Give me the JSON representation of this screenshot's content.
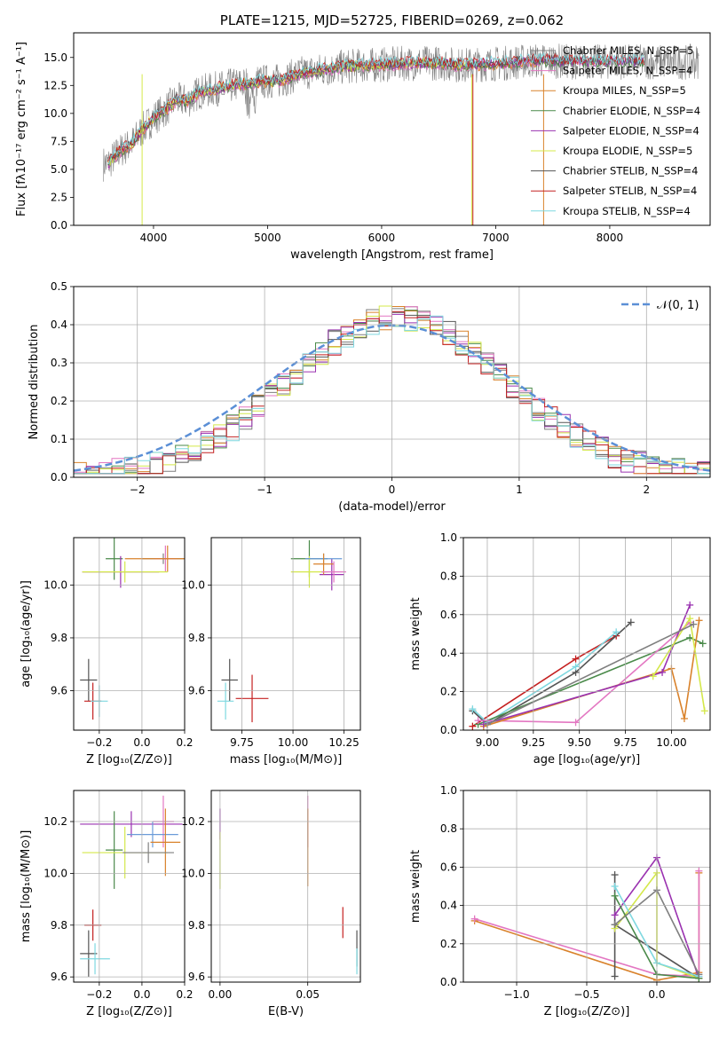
{
  "colors": {
    "chabrier_miles": "#7f7f7f",
    "salpeter_miles": "#e377c2",
    "kroupa_miles": "#d9822b",
    "chabrier_elodie": "#4a8a4a",
    "salpeter_elodie": "#9a32b0",
    "kroupa_elodie": "#d4e84a",
    "chabrier_stelib": "#555555",
    "salpeter_stelib": "#c42020",
    "kroupa_stelib": "#7fd8e0",
    "model_blue": "#6a9bd8",
    "normal": "#5b8fd6",
    "grid": "#b0b0b0"
  },
  "chart_data": [
    {
      "id": "spectrum",
      "type": "line",
      "title": "PLATE=1215, MJD=52725, FIBERID=0269, z=0.062",
      "xlabel": "wavelength [Angstrom, rest frame]",
      "ylabel": "Flux [fλ10⁻¹⁷ erg cm⁻² s⁻¹ A⁻¹]",
      "xlim": [
        3300,
        8880
      ],
      "ylim": [
        0,
        17.2
      ],
      "xticks": [
        "4000",
        "5000",
        "6000",
        "7000",
        "8000"
      ],
      "yticks": [
        "0.0",
        "2.5",
        "5.0",
        "7.5",
        "10.0",
        "12.5",
        "15.0"
      ],
      "legend_position": "right",
      "legend": [
        "Chabrier MILES, N_SSP=5",
        "Salpeter MILES, N_SSP=4",
        "Kroupa MILES, N_SSP=5",
        "Chabrier ELODIE, N_SSP=4",
        "Salpeter ELODIE, N_SSP=4",
        "Kroupa ELODIE, N_SSP=5",
        "Chabrier STELIB, N_SSP=4",
        "Salpeter STELIB, N_SSP=4",
        "Kroupa STELIB, N_SSP=4"
      ],
      "continuum": {
        "x": [
          3600,
          3700,
          3800,
          3900,
          4000,
          4100,
          4200,
          4300,
          4400,
          4500,
          4700,
          4900,
          5100,
          5300,
          5500,
          5700,
          5900,
          6100,
          6300,
          6500,
          6700,
          6900,
          7100,
          7300,
          7500,
          7700
        ],
        "y": [
          5.5,
          6.6,
          7.2,
          8.5,
          9.6,
          10.3,
          11.2,
          11.1,
          11.9,
          12.1,
          12.5,
          12.8,
          12.9,
          13.6,
          13.9,
          14.2,
          14.3,
          14.4,
          14.5,
          14.5,
          14.3,
          14.4,
          14.5,
          14.7,
          14.7,
          14.6
        ]
      }
    },
    {
      "id": "residuals",
      "type": "histogram",
      "xlabel": "(data-model)/error",
      "ylabel": "Normed distribution",
      "xlim": [
        -2.5,
        2.5
      ],
      "ylim": [
        0,
        0.5
      ],
      "xticks": [
        "−2",
        "−1",
        "0",
        "1",
        "2"
      ],
      "yticks": [
        "0.0",
        "0.1",
        "0.2",
        "0.3",
        "0.4",
        "0.5"
      ],
      "legend": [
        "𝒩(0, 1)"
      ],
      "legend_position": "top-right",
      "bin_width": 0.1,
      "bins_from": -2.5,
      "bins_to": 2.5
    },
    {
      "id": "age_vs_Z",
      "type": "scatter",
      "xlabel": "Z [log₁₀(Z/Z⊙)]",
      "ylabel": "age  [log₁₀(age/yr)]",
      "xlim": [
        -0.32,
        0.2
      ],
      "ylim": [
        9.45,
        10.18
      ],
      "xticks": [
        "−0.2",
        "0.0",
        "0.2"
      ],
      "yticks": [
        "9.6",
        "9.8",
        "10.0"
      ],
      "points": [
        {
          "model": "chabrier_miles",
          "x": 0.1,
          "y": 10.1,
          "xerr": 0.1,
          "yerr": 0.02
        },
        {
          "model": "salpeter_miles",
          "x": 0.11,
          "y": 10.1,
          "xerr": 0.05,
          "yerr": 0.05
        },
        {
          "model": "kroupa_miles",
          "x": 0.12,
          "y": 10.1,
          "xerr": 0.2,
          "yerr": 0.05
        },
        {
          "model": "chabrier_elodie",
          "x": -0.13,
          "y": 10.1,
          "xerr": 0.04,
          "yerr": 0.08
        },
        {
          "model": "salpeter_elodie",
          "x": -0.1,
          "y": 10.05,
          "xerr": 0.18,
          "yerr": 0.06
        },
        {
          "model": "kroupa_elodie",
          "x": -0.08,
          "y": 10.05,
          "xerr": 0.2,
          "yerr": 0.04
        },
        {
          "model": "chabrier_stelib",
          "x": -0.25,
          "y": 9.64,
          "xerr": 0.04,
          "yerr": 0.08
        },
        {
          "model": "salpeter_stelib",
          "x": -0.23,
          "y": 9.56,
          "xerr": 0.04,
          "yerr": 0.07
        },
        {
          "model": "kroupa_stelib",
          "x": -0.2,
          "y": 9.56,
          "xerr": 0.04,
          "yerr": 0.06
        }
      ]
    },
    {
      "id": "age_vs_mass",
      "type": "scatter",
      "xlabel": "mass [log₁₀(M/M⊙)]",
      "ylabel": "",
      "xlim": [
        9.6,
        10.33
      ],
      "ylim": [
        9.45,
        10.18
      ],
      "xticks": [
        "9.75",
        "10.00",
        "10.25"
      ],
      "yticks": [
        "9.6",
        "9.8",
        "10.0"
      ],
      "points": [
        {
          "model": "chabrier_elodie",
          "x": 10.08,
          "y": 10.1,
          "xerr": 0.09,
          "yerr": 0.07
        },
        {
          "model": "salpeter_elodie",
          "x": 10.19,
          "y": 10.04,
          "xerr": 0.06,
          "yerr": 0.06
        },
        {
          "model": "kroupa_elodie",
          "x": 10.08,
          "y": 10.05,
          "xerr": 0.09,
          "yerr": 0.06
        },
        {
          "model": "model_blue",
          "x": 10.15,
          "y": 10.1,
          "xerr": 0.09,
          "yerr": 0.02
        },
        {
          "model": "kroupa_miles",
          "x": 10.15,
          "y": 10.08,
          "xerr": 0.05,
          "yerr": 0.04
        },
        {
          "model": "salpeter_miles",
          "x": 10.2,
          "y": 10.05,
          "xerr": 0.06,
          "yerr": 0.04
        },
        {
          "model": "chabrier_stelib",
          "x": 9.69,
          "y": 9.64,
          "xerr": 0.04,
          "yerr": 0.08
        },
        {
          "model": "salpeter_stelib",
          "x": 9.8,
          "y": 9.57,
          "xerr": 0.08,
          "yerr": 0.09
        },
        {
          "model": "kroupa_stelib",
          "x": 9.67,
          "y": 9.56,
          "xerr": 0.04,
          "yerr": 0.07
        }
      ]
    },
    {
      "id": "weight_vs_age",
      "type": "line",
      "xlabel": "age  [log₁₀(age/yr)]",
      "ylabel": "mass weight",
      "xlim": [
        8.87,
        10.21
      ],
      "ylim": [
        0,
        1
      ],
      "xticks": [
        "9.00",
        "9.25",
        "9.50",
        "9.75",
        "10.00"
      ],
      "yticks": [
        "0.0",
        "0.2",
        "0.4",
        "0.6",
        "0.8",
        "1.0"
      ],
      "series": [
        {
          "model": "salpeter_stelib",
          "x": [
            8.92,
            9.48,
            9.7
          ],
          "y": [
            0.02,
            0.37,
            0.49
          ]
        },
        {
          "model": "chabrier_stelib",
          "x": [
            8.92,
            9.0,
            9.48,
            9.78
          ],
          "y": [
            0.1,
            0.03,
            0.3,
            0.56
          ]
        },
        {
          "model": "kroupa_stelib",
          "x": [
            8.92,
            9.0,
            9.48,
            9.7
          ],
          "y": [
            0.11,
            0.04,
            0.33,
            0.51
          ]
        },
        {
          "model": "chabrier_elodie",
          "x": [
            8.95,
            10.1,
            10.17
          ],
          "y": [
            0.03,
            0.48,
            0.45
          ]
        },
        {
          "model": "salpeter_miles",
          "x": [
            8.95,
            9.48,
            10.1
          ],
          "y": [
            0.05,
            0.04,
            0.56
          ]
        },
        {
          "model": "kroupa_miles",
          "x": [
            8.98,
            10.0,
            10.07,
            10.15
          ],
          "y": [
            0.02,
            0.32,
            0.06,
            0.57
          ]
        },
        {
          "model": "salpeter_elodie",
          "x": [
            8.98,
            9.95,
            10.1
          ],
          "y": [
            0.03,
            0.3,
            0.65
          ]
        },
        {
          "model": "kroupa_elodie",
          "x": [
            9.9,
            10.1,
            10.18
          ],
          "y": [
            0.28,
            0.58,
            0.1
          ]
        },
        {
          "model": "chabrier_miles",
          "x": [
            9.0,
            10.12
          ],
          "y": [
            0.03,
            0.55
          ]
        }
      ]
    },
    {
      "id": "mass_vs_Z",
      "type": "scatter",
      "xlabel": "Z [log₁₀(Z/Z⊙)]",
      "ylabel": "mass [log₁₀(M/M⊙)]",
      "xlim": [
        -0.32,
        0.2
      ],
      "ylim": [
        9.58,
        10.32
      ],
      "xticks": [
        "−0.2",
        "0.0",
        "0.2"
      ],
      "yticks": [
        "9.6",
        "9.8",
        "10.0",
        "10.2"
      ],
      "points": [
        {
          "model": "salpeter_elodie",
          "x": -0.05,
          "y": 10.19,
          "xerr": 0.24,
          "yerr": 0.05
        },
        {
          "model": "salpeter_miles",
          "x": 0.1,
          "y": 10.2,
          "xerr": 0.05,
          "yerr": 0.1
        },
        {
          "model": "model_blue",
          "x": 0.05,
          "y": 10.15,
          "xerr": 0.12,
          "yerr": 0.05
        },
        {
          "model": "kroupa_miles",
          "x": 0.11,
          "y": 10.12,
          "xerr": 0.07,
          "yerr": 0.13
        },
        {
          "model": "chabrier_elodie",
          "x": -0.13,
          "y": 10.09,
          "xerr": 0.04,
          "yerr": 0.15
        },
        {
          "model": "kroupa_elodie",
          "x": -0.08,
          "y": 10.08,
          "xerr": 0.2,
          "yerr": 0.1
        },
        {
          "model": "chabrier_miles",
          "x": 0.03,
          "y": 10.08,
          "xerr": 0.12,
          "yerr": 0.04
        },
        {
          "model": "salpeter_stelib",
          "x": -0.23,
          "y": 9.8,
          "xerr": 0.04,
          "yerr": 0.06
        },
        {
          "model": "chabrier_stelib",
          "x": -0.25,
          "y": 9.69,
          "xerr": 0.04,
          "yerr": 0.09
        },
        {
          "model": "kroupa_stelib",
          "x": -0.22,
          "y": 9.67,
          "xerr": 0.07,
          "yerr": 0.06
        }
      ]
    },
    {
      "id": "mass_vs_ebv",
      "type": "scatter",
      "xlabel": "E(B-V)",
      "ylabel": "",
      "xlim": [
        -0.005,
        0.08
      ],
      "ylim": [
        9.58,
        10.32
      ],
      "xticks": [
        "0.00",
        "0.05"
      ],
      "yticks": [
        "9.6",
        "9.8",
        "10.0",
        "10.2"
      ],
      "points": [
        {
          "model": "salpeter_elodie",
          "x": 0.0,
          "y": 10.19,
          "xerr": 0.0,
          "yerr": 0.06
        },
        {
          "model": "kroupa_elodie",
          "x": 0.0,
          "y": 10.05,
          "xerr": 0.0,
          "yerr": 0.11
        },
        {
          "model": "salpeter_miles",
          "x": 0.05,
          "y": 10.2,
          "xerr": 0.0,
          "yerr": 0.1
        },
        {
          "model": "kroupa_miles",
          "x": 0.05,
          "y": 10.1,
          "xerr": 0.0,
          "yerr": 0.15
        },
        {
          "model": "salpeter_stelib",
          "x": 0.07,
          "y": 9.81,
          "xerr": 0.0,
          "yerr": 0.06
        },
        {
          "model": "chabrier_stelib",
          "x": 0.078,
          "y": 9.71,
          "xerr": 0.0,
          "yerr": 0.07
        },
        {
          "model": "kroupa_stelib",
          "x": 0.078,
          "y": 9.66,
          "xerr": 0.0,
          "yerr": 0.05
        }
      ]
    },
    {
      "id": "weight_vs_Z",
      "type": "line",
      "xlabel": "Z [log₁₀(Z/Z⊙)]",
      "ylabel": "mass weight",
      "xlim": [
        -1.38,
        0.38
      ],
      "ylim": [
        0,
        1
      ],
      "xticks": [
        "−1.0",
        "−0.5",
        "0.0"
      ],
      "yticks": [
        "0.0",
        "0.2",
        "0.4",
        "0.6",
        "0.8",
        "1.0"
      ],
      "series": [
        {
          "model": "kroupa_miles",
          "x": [
            -1.3,
            0.0,
            0.3,
            0.3
          ],
          "y": [
            0.32,
            0.01,
            0.05,
            0.57
          ]
        },
        {
          "model": "salpeter_miles",
          "x": [
            -1.3,
            0.0,
            0.3,
            0.3
          ],
          "y": [
            0.33,
            0.04,
            0.03,
            0.58
          ]
        },
        {
          "model": "chabrier_stelib",
          "x": [
            -0.3,
            -0.3,
            -0.3,
            0.3
          ],
          "y": [
            0.03,
            0.56,
            0.3,
            0.02
          ]
        },
        {
          "model": "salpeter_elodie",
          "x": [
            -0.3,
            0.0,
            0.3
          ],
          "y": [
            0.35,
            0.65,
            0.02
          ]
        },
        {
          "model": "kroupa_elodie",
          "x": [
            -0.3,
            0.0,
            0.0,
            0.3
          ],
          "y": [
            0.28,
            0.57,
            0.1,
            0.02
          ]
        },
        {
          "model": "kroupa_stelib",
          "x": [
            -0.3,
            0.0,
            0.3
          ],
          "y": [
            0.5,
            0.1,
            0.03
          ]
        },
        {
          "model": "chabrier_elodie",
          "x": [
            -0.3,
            0.0,
            0.3
          ],
          "y": [
            0.45,
            0.04,
            0.02
          ]
        },
        {
          "model": "chabrier_miles",
          "x": [
            -0.3,
            0.0,
            0.3
          ],
          "y": [
            0.3,
            0.48,
            0.04
          ]
        }
      ]
    }
  ]
}
